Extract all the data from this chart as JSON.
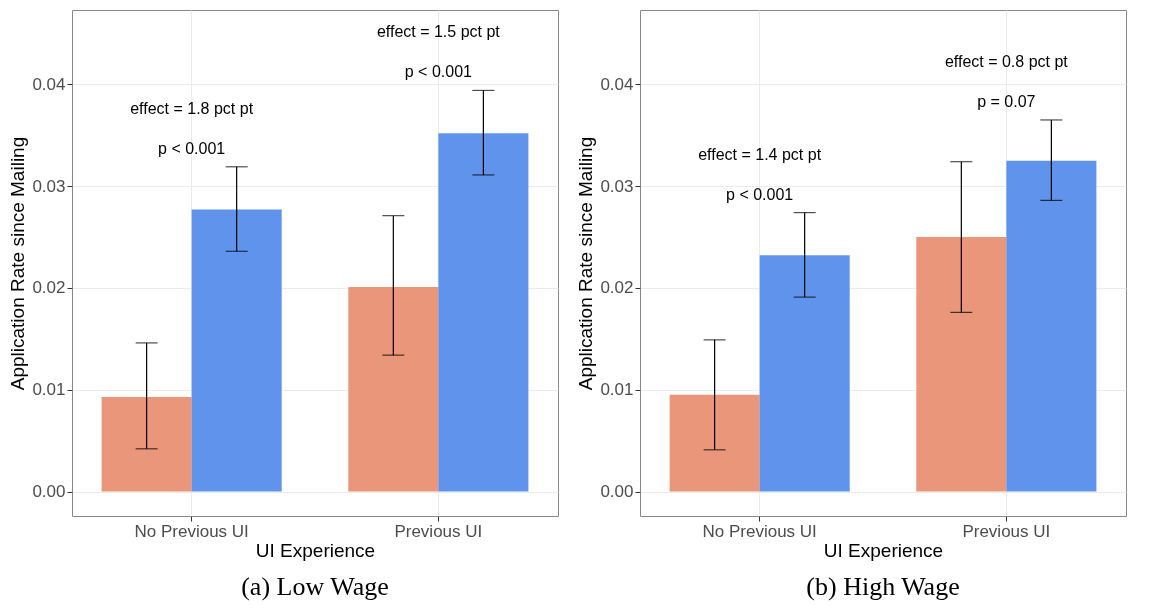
{
  "chart_data": [
    {
      "type": "bar",
      "title": "(a) Low Wage",
      "xlabel": "UI Experience",
      "ylabel": "Application Rate since Mailing",
      "categories": [
        "No Previous UI",
        "Previous UI"
      ],
      "series": [
        {
          "color": "#e9967a",
          "values": [
            0.0093,
            0.0201
          ],
          "errors": [
            [
              0.0042,
              0.0146
            ],
            [
              0.0134,
              0.0271
            ]
          ]
        },
        {
          "color": "#6094ec",
          "values": [
            0.0277,
            0.0352
          ],
          "errors": [
            [
              0.0236,
              0.0319
            ],
            [
              0.0311,
              0.0394
            ]
          ]
        }
      ],
      "ylim": [
        -0.0024,
        0.0473
      ],
      "yticks": [
        {
          "value": 0,
          "label": "0.00"
        },
        0.01,
        0.02,
        0.03,
        0.04
      ],
      "grid": true,
      "legend": false,
      "annotations": [
        "effect = 1.8 pct pt",
        "p < 0.001",
        "effect = 1.5 pct pt",
        "p < 0.001"
      ]
    },
    {
      "type": "bar",
      "title": "(b) High Wage",
      "xlabel": "UI Experience",
      "ylabel": "Application Rate since Mailing",
      "categories": [
        "No Previous UI",
        "Previous UI"
      ],
      "series": [
        {
          "color": "#e9967a",
          "values": [
            0.0095,
            0.025
          ],
          "errors": [
            [
              0.0041,
              0.0149
            ],
            [
              0.0176,
              0.0324
            ]
          ]
        },
        {
          "color": "#6094ec",
          "values": [
            0.0232,
            0.0325
          ],
          "errors": [
            [
              0.0191,
              0.0274
            ],
            [
              0.0286,
              0.0365
            ]
          ]
        }
      ],
      "ylim": [
        -0.0024,
        0.0473
      ],
      "yticks": [
        {
          "value": 0,
          "label": "0.00"
        },
        0.01,
        0.02,
        0.03,
        0.04
      ],
      "grid": true,
      "legend": false,
      "annotations": [
        "effect = 1.4 pct pt",
        "p < 0.001",
        "effect = 0.8 pct pt",
        "p = 0.07"
      ]
    }
  ]
}
